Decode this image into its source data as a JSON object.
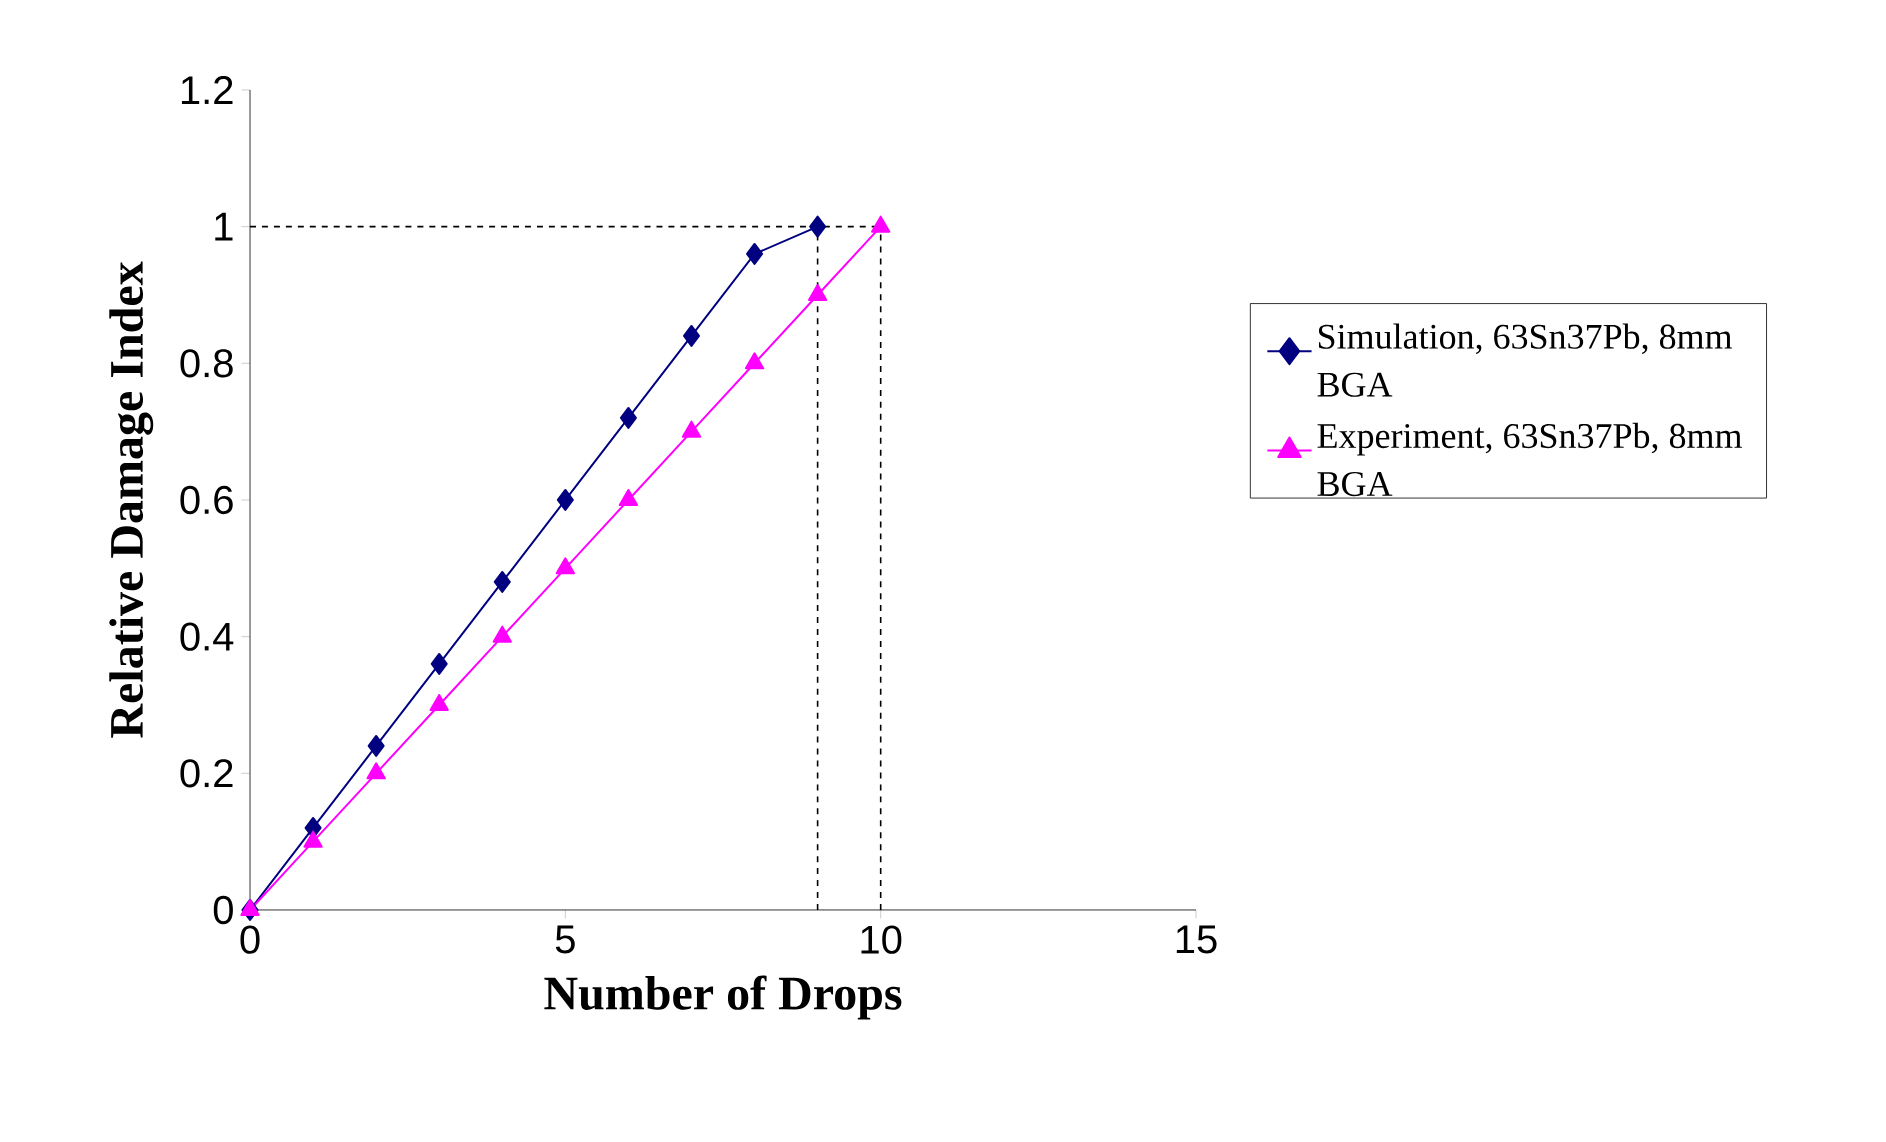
{
  "chart_data": {
    "type": "line",
    "xlabel": "Number of Drops",
    "ylabel": "Relative Damage Index",
    "series": [
      {
        "name": "Simulation, 63Sn37Pb, 8mm BGA",
        "color": "#000080",
        "marker": "diamond",
        "x": [
          0,
          1,
          2,
          3,
          4,
          5,
          6,
          7,
          8,
          9
        ],
        "values": [
          0,
          0.12,
          0.24,
          0.36,
          0.48,
          0.6,
          0.72,
          0.84,
          0.96,
          1.0
        ]
      },
      {
        "name": "Experiment, 63Sn37Pb, 8mm BGA",
        "color": "#ff00ff",
        "marker": "triangle",
        "x": [
          0,
          1,
          2,
          3,
          4,
          5,
          6,
          7,
          8,
          9,
          10
        ],
        "values": [
          0,
          0.1,
          0.2,
          0.3,
          0.4,
          0.5,
          0.6,
          0.7,
          0.8,
          0.9,
          1.0
        ]
      }
    ],
    "xlim": [
      0,
      15
    ],
    "xticks": [
      0,
      5,
      10,
      15
    ],
    "ylim": [
      0,
      1.2
    ],
    "yticks": [
      0,
      0.2,
      0.4,
      0.6,
      0.8,
      1,
      1.2
    ],
    "ref_lines": [
      {
        "axis": "y",
        "value": 1,
        "color": "#000000",
        "line_style": "dashed"
      },
      {
        "axis": "x",
        "value": 9,
        "color": "#000000",
        "line_style": "dashed"
      },
      {
        "axis": "x",
        "value": 10,
        "color": "#000000",
        "line_style": "dashed"
      }
    ],
    "legend": "right",
    "grid": false,
    "line_style": "solid"
  }
}
